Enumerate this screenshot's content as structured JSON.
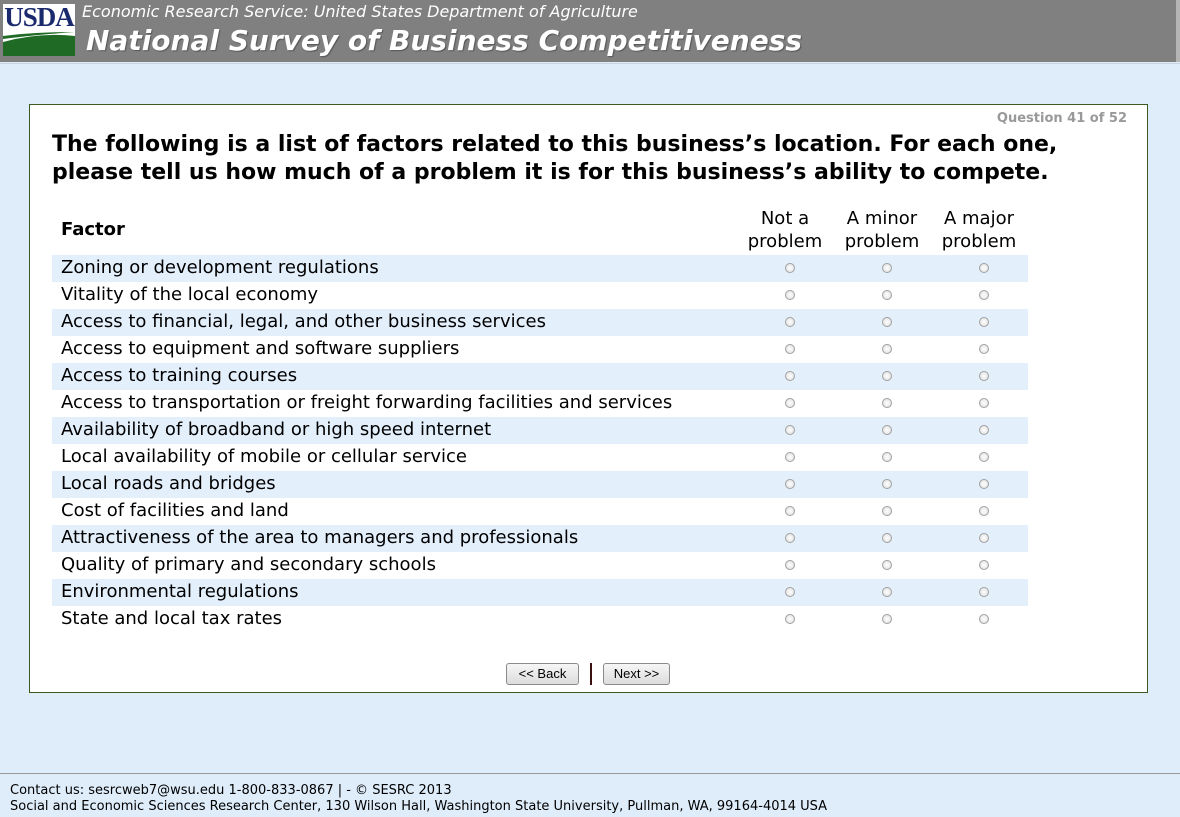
{
  "header": {
    "logo_text": "USDA",
    "subtitle": "Economic Research Service: United States Department of Agriculture",
    "title": "National Survey of Business Competitiveness"
  },
  "survey": {
    "progress": "Question 41 of 52",
    "question": "The following is a list of factors related to this business’s location. For each one, please tell us how much of a problem it is for this business’s ability to compete.",
    "factor_header": "Factor",
    "columns": [
      "Not a problem",
      "A minor problem",
      "A major problem"
    ],
    "factors": [
      "Zoning or development regulations",
      "Vitality of the local economy",
      "Access to financial, legal, and other business services",
      "Access to equipment and software suppliers",
      "Access to training courses",
      "Access to transportation or freight forwarding facilities and services",
      "Availability of broadband or high speed internet",
      "Local availability of mobile or cellular service",
      "Local roads and bridges",
      "Cost of facilities and land",
      "Attractiveness of the area to managers and professionals",
      "Quality of primary and secondary schools",
      "Environmental regulations",
      "State and local tax rates"
    ],
    "back_label": "<< Back",
    "next_label": "Next >>"
  },
  "footer": {
    "contact": "Contact us: sesrcweb7@wsu.edu 1-800-833-0867 | - © SESRC 2013",
    "address": "Social and Economic Sciences Research Center, 130 Wilson Hall, Washington State University, Pullman, WA, 99164-4014 USA"
  }
}
